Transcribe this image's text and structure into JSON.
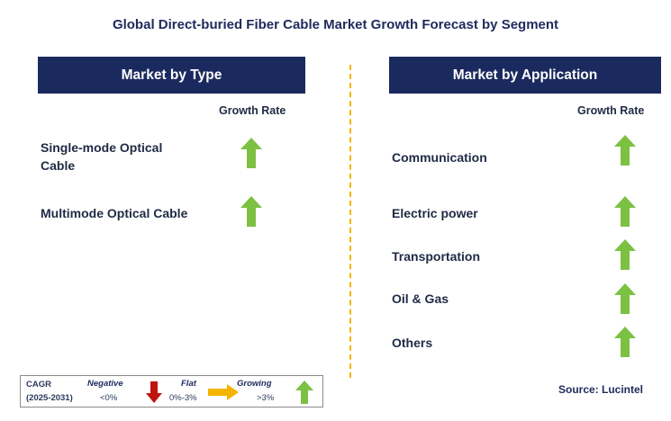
{
  "title": "Global Direct-buried Fiber Cable Market Growth Forecast by Segment",
  "left_panel": {
    "header": "Market by Type",
    "growth_rate_label": "Growth Rate",
    "segments": [
      {
        "label": "Single-mode Optical Cable",
        "trend": "growing"
      },
      {
        "label": "Multimode Optical Cable",
        "trend": "growing"
      }
    ]
  },
  "right_panel": {
    "header": "Market by Application",
    "growth_rate_label": "Growth Rate",
    "segments": [
      {
        "label": "Communication",
        "trend": "growing"
      },
      {
        "label": "Electric power",
        "trend": "growing"
      },
      {
        "label": "Transportation",
        "trend": "growing"
      },
      {
        "label": "Oil & Gas",
        "trend": "growing"
      },
      {
        "label": "Others",
        "trend": "growing"
      }
    ]
  },
  "legend": {
    "cagr_label": "CAGR",
    "period": "(2025-2031)",
    "negative": {
      "label": "Negative",
      "range": "<0%",
      "icon": "down-arrow-icon",
      "color": "#c0150f"
    },
    "flat": {
      "label": "Flat",
      "range": "0%-3%",
      "icon": "right-arrow-icon",
      "color": "#f4b400"
    },
    "growing": {
      "label": "Growing",
      "range": ">3%",
      "icon": "up-arrow-icon",
      "color": "#7cc142"
    }
  },
  "source": "Source: Lucintel",
  "colors": {
    "header_bg": "#1b2a5e",
    "divider": "#f4b400",
    "growth_arrow": "#7cc142"
  }
}
